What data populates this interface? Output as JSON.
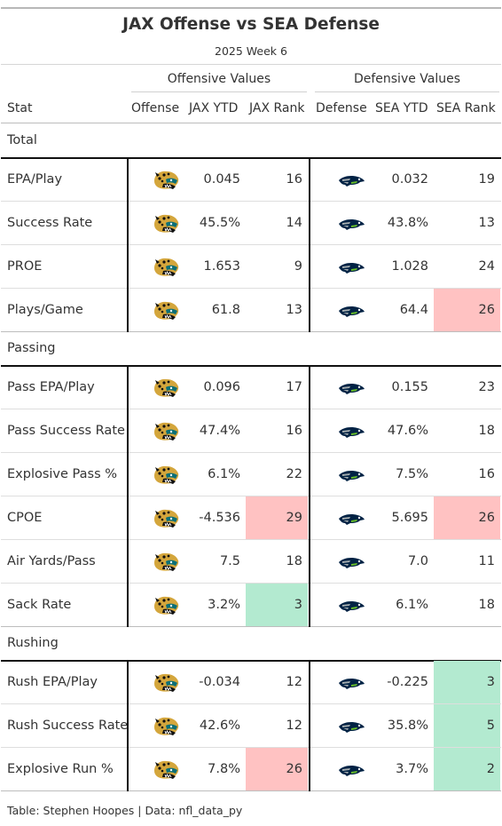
{
  "title": "JAX Offense vs SEA Defense",
  "subtitle": "2025 Week 6",
  "spanners": {
    "offense": "Offensive Values",
    "defense": "Defensive Values"
  },
  "columns": {
    "stat": "Stat",
    "offense": "Offense",
    "off_ytd": "JAX YTD",
    "off_rank": "JAX Rank",
    "defense": "Defense",
    "def_ytd": "SEA YTD",
    "def_rank": "SEA Rank"
  },
  "logos": {
    "offense": "jaguars-logo-icon",
    "defense": "seahawks-logo-icon"
  },
  "colors": {
    "bad_rank": "#ffc2c2",
    "good_rank": "#b3ead0"
  },
  "groups": [
    {
      "name": "Total",
      "rows": [
        {
          "stat": "EPA/Play",
          "off_ytd": "0.045",
          "off_rank": "16",
          "def_ytd": "0.032",
          "def_rank": "19"
        },
        {
          "stat": "Success Rate",
          "off_ytd": "45.5%",
          "off_rank": "14",
          "def_ytd": "43.8%",
          "def_rank": "13"
        },
        {
          "stat": "PROE",
          "off_ytd": "1.653",
          "off_rank": "9",
          "def_ytd": "1.028",
          "def_rank": "24"
        },
        {
          "stat": "Plays/Game",
          "off_ytd": "61.8",
          "off_rank": "13",
          "def_ytd": "64.4",
          "def_rank": "26",
          "def_hl": "bad"
        }
      ]
    },
    {
      "name": "Passing",
      "rows": [
        {
          "stat": "Pass EPA/Play",
          "off_ytd": "0.096",
          "off_rank": "17",
          "def_ytd": "0.155",
          "def_rank": "23"
        },
        {
          "stat": "Pass Success Rate",
          "off_ytd": "47.4%",
          "off_rank": "16",
          "def_ytd": "47.6%",
          "def_rank": "18"
        },
        {
          "stat": "Explosive Pass %",
          "off_ytd": "6.1%",
          "off_rank": "22",
          "def_ytd": "7.5%",
          "def_rank": "16"
        },
        {
          "stat": "CPOE",
          "off_ytd": "-4.536",
          "off_rank": "29",
          "off_hl": "bad",
          "def_ytd": "5.695",
          "def_rank": "26",
          "def_hl": "bad"
        },
        {
          "stat": "Air Yards/Pass",
          "off_ytd": "7.5",
          "off_rank": "18",
          "def_ytd": "7.0",
          "def_rank": "11"
        },
        {
          "stat": "Sack Rate",
          "off_ytd": "3.2%",
          "off_rank": "3",
          "off_hl": "good",
          "def_ytd": "6.1%",
          "def_rank": "18"
        }
      ]
    },
    {
      "name": "Rushing",
      "rows": [
        {
          "stat": "Rush EPA/Play",
          "off_ytd": "-0.034",
          "off_rank": "12",
          "def_ytd": "-0.225",
          "def_rank": "3",
          "def_hl": "good"
        },
        {
          "stat": "Rush Success Rate",
          "off_ytd": "42.6%",
          "off_rank": "12",
          "def_ytd": "35.8%",
          "def_rank": "5",
          "def_hl": "good"
        },
        {
          "stat": "Explosive Run %",
          "off_ytd": "7.8%",
          "off_rank": "26",
          "off_hl": "bad",
          "def_ytd": "3.7%",
          "def_rank": "2",
          "def_hl": "good"
        }
      ]
    }
  ],
  "footer": "Table: Stephen Hoopes | Data: nfl_data_py"
}
